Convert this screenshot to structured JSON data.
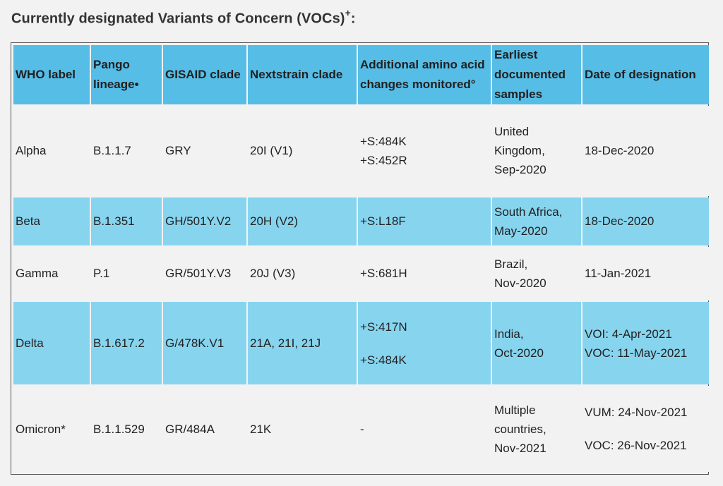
{
  "title": "Currently designated Variants of Concern (VOCs)",
  "title_sup": "+",
  "title_suffix": ":",
  "headers": {
    "who_label": "WHO label",
    "pango_lineage": "Pango lineage•",
    "gisaid_clade": "GISAID clade",
    "nextstrain_clade": "Nextstrain clade",
    "amino_acid": "Additional amino acid changes monitored°",
    "earliest_samples": "Earliest documented samples",
    "date_designation": "Date of designation"
  },
  "rows": [
    {
      "who_label": "Alpha",
      "pango": "B.1.1.7",
      "gisaid": "GRY",
      "nextstrain": "20I (V1)",
      "amino": [
        "+S:484K",
        "+S:452R"
      ],
      "earliest": [
        "United",
        "Kingdom,",
        "Sep-2020"
      ],
      "date": [
        "18-Dec-2020"
      ]
    },
    {
      "who_label": "Beta",
      "pango": "B.1.351",
      "gisaid": "GH/501Y.V2",
      "nextstrain": "20H (V2)",
      "amino": [
        "+S:L18F"
      ],
      "earliest": [
        "South Africa,",
        "May-2020"
      ],
      "date": [
        "18-Dec-2020"
      ]
    },
    {
      "who_label": "Gamma",
      "pango": "P.1",
      "gisaid": "GR/501Y.V3",
      "nextstrain": "20J (V3)",
      "amino": [
        "+S:681H"
      ],
      "earliest": [
        "Brazil,",
        "Nov-2020"
      ],
      "date": [
        "11-Jan-2021"
      ]
    },
    {
      "who_label": "Delta",
      "pango": "B.1.617.2",
      "gisaid": "G/478K.V1",
      "nextstrain": "21A, 21I, 21J",
      "amino": [
        "+S:417N",
        "+S:484K"
      ],
      "earliest": [
        "India,",
        "Oct-2020"
      ],
      "date": [
        "VOI: 4-Apr-2021",
        "VOC: 11-May-2021"
      ]
    },
    {
      "who_label": "Omicron*",
      "pango": "B.1.1.529",
      "gisaid": "GR/484A",
      "nextstrain": "21K",
      "amino": [
        "-"
      ],
      "earliest": [
        "Multiple",
        "countries,",
        "Nov-2021"
      ],
      "date": [
        "VUM: 24-Nov-2021",
        "VOC: 26-Nov-2021"
      ]
    }
  ],
  "colors": {
    "header_bg": "#56bde6",
    "highlight_row_bg": "#87d4ee",
    "plain_row_bg": "#f2f2f2"
  }
}
